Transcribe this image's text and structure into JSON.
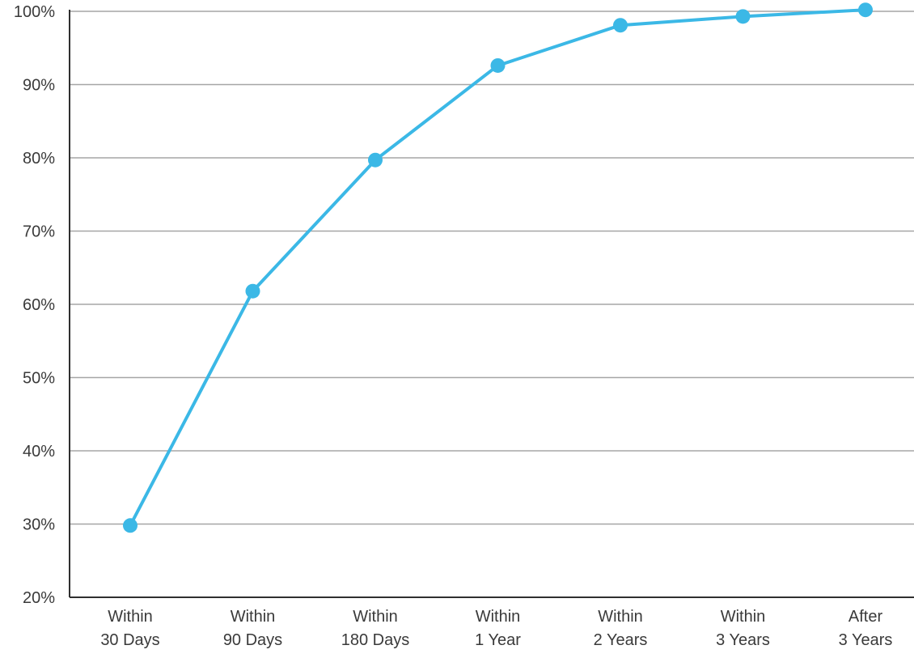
{
  "colors": {
    "line": "#3bb8e6",
    "grid": "#a6a6a6",
    "axis": "#2f2f2f",
    "text": "#3a3a3a",
    "background": "#ffffff"
  },
  "chart_data": {
    "type": "line",
    "title": "",
    "xlabel": "",
    "ylabel": "",
    "ylim": [
      20,
      100
    ],
    "y_ticks": [
      20,
      30,
      40,
      50,
      60,
      70,
      80,
      90,
      100
    ],
    "y_tick_labels": [
      "20%",
      "30%",
      "40%",
      "50%",
      "60%",
      "70%",
      "80%",
      "90%",
      "100%"
    ],
    "categories": [
      [
        "Within",
        "30 Days"
      ],
      [
        "Within",
        "90 Days"
      ],
      [
        "Within",
        "180 Days"
      ],
      [
        "Within",
        "1 Year"
      ],
      [
        "Within",
        "2 Years"
      ],
      [
        "Within",
        "3 Years"
      ],
      [
        "After",
        "3 Years"
      ]
    ],
    "series": [
      {
        "values": [
          29.8,
          61.8,
          79.7,
          92.6,
          98.1,
          99.3,
          100.2
        ]
      }
    ],
    "grid": true,
    "legend": "none"
  }
}
